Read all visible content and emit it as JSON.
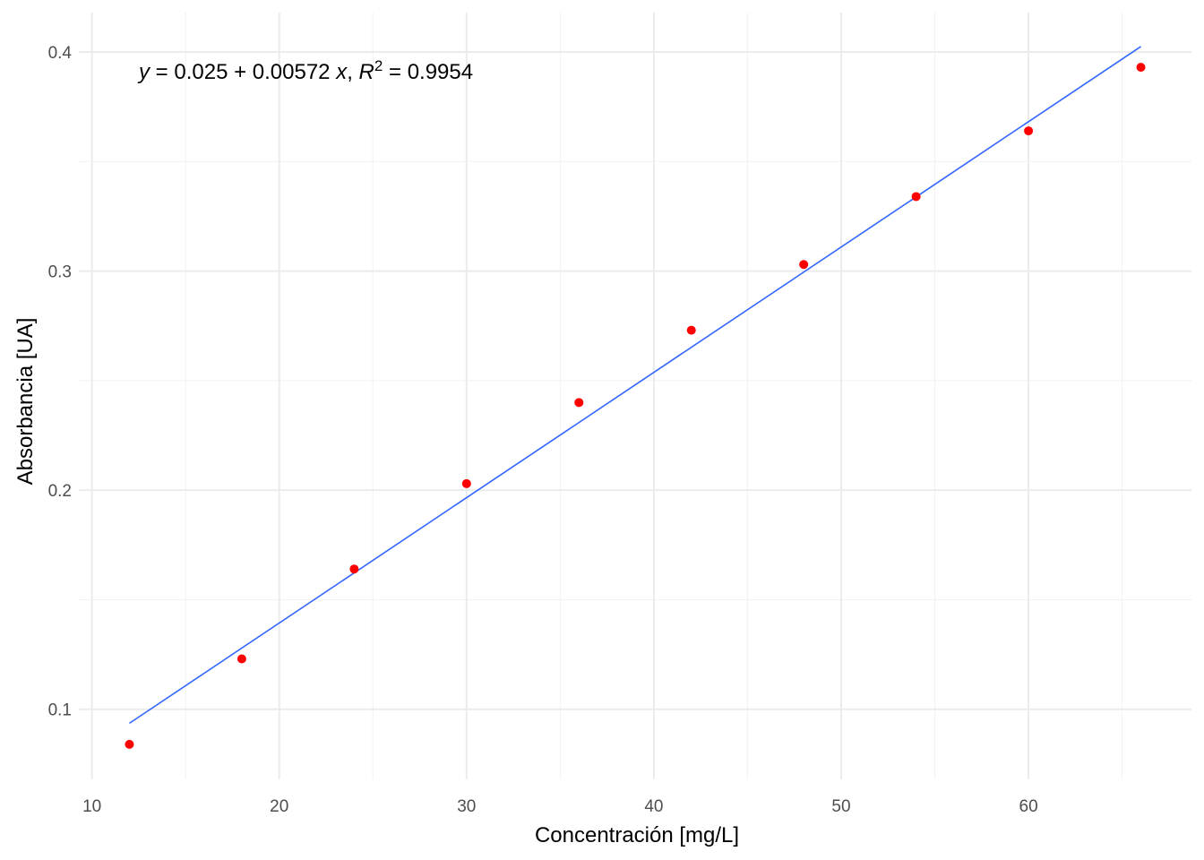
{
  "chart_data": {
    "type": "scatter",
    "x_label": "Concentración [mg/L]",
    "y_label": "Absorbancia [UA]",
    "annotation": [
      "y",
      " = 0.025 + 0.00572 ",
      "x",
      ", ",
      "R",
      "2",
      " = 0.9954"
    ],
    "x": [
      12,
      18,
      24,
      30,
      36,
      42,
      48,
      54,
      60,
      66
    ],
    "values": [
      0.084,
      0.123,
      0.164,
      0.203,
      0.24,
      0.273,
      0.303,
      0.334,
      0.364,
      0.393
    ],
    "color": "#ff0000",
    "fit_line": {
      "color": "#3366ff",
      "x": [
        12,
        66
      ],
      "values": [
        0.0936,
        0.4025
      ]
    },
    "xlim": [
      9.3,
      68.7
    ],
    "ylim": [
      0.068,
      0.418
    ],
    "xticks": [
      10,
      20,
      30,
      40,
      50,
      60
    ],
    "yticks": [
      0.1,
      0.2,
      0.3,
      0.4
    ],
    "xminorticks": [
      15,
      25,
      35,
      45,
      55,
      65
    ],
    "yminorticks": [
      0.15,
      0.25,
      0.35
    ],
    "grid": true
  }
}
